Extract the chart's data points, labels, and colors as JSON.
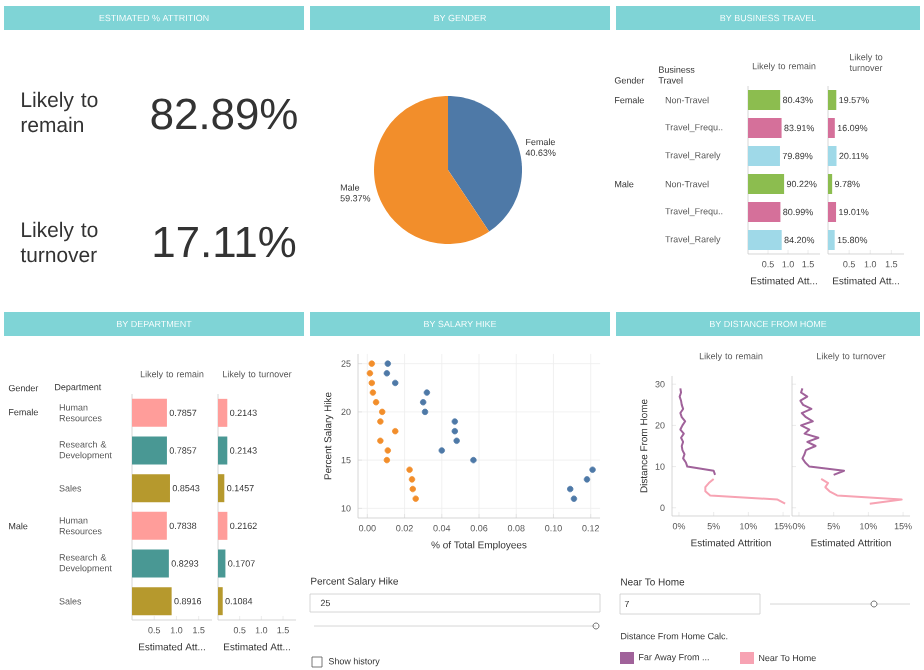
{
  "chart_data": [
    {
      "type": "other",
      "title": "ESTIMATED % ATTRITION",
      "annotations": [
        "Likely to remain",
        "82.89%",
        "Likely to turnover",
        "17.11%"
      ]
    },
    {
      "type": "pie",
      "title": "BY GENDER",
      "categories": [
        "Female",
        "Male"
      ],
      "values": [
        40.63,
        59.37
      ],
      "colors": [
        "#4e79a7",
        "#f28e2b"
      ],
      "value_labels": [
        "40.63%",
        "59.37%"
      ]
    },
    {
      "type": "bar",
      "orientation": "horizontal",
      "title": "BY BUSINESS TRAVEL",
      "subtitle": "Likely to remain",
      "xlabel": "Estimated Att...",
      "categories": [
        "Non-Travel",
        "Travel_Frequ..",
        "Travel_Rarely",
        "Non-Travel",
        "Travel_Frequ..",
        "Travel_Rarely"
      ],
      "values": [
        0.8043,
        0.8391,
        0.7989,
        0.9022,
        0.8099,
        0.842
      ],
      "colors": [
        "#8cbd4f",
        "#d5709a",
        "#9fd9e8",
        "#8cbd4f",
        "#d5709a",
        "#9fd9e8"
      ],
      "value_labels": [
        "80.43%",
        "83.91%",
        "79.89%",
        "90.22%",
        "80.99%",
        "84.20%"
      ],
      "xlim": [
        0,
        1.8
      ],
      "xticks": [
        0.5,
        {
          "value": 1,
          "label": "1.0"
        },
        1.5
      ],
      "annotations": [
        "Gender",
        "Business Travel",
        "Female",
        "Male"
      ]
    },
    {
      "type": "bar",
      "orientation": "horizontal",
      "subtitle": "Likely to turnover",
      "xlabel": "Estimated Att...",
      "tick_labels": "x",
      "categories": [
        null,
        null,
        null,
        null,
        null,
        null
      ],
      "values": [
        0.1957,
        0.1609,
        0.2011,
        0.0978,
        0.1901,
        0.158
      ],
      "colors": [
        "#8cbd4f",
        "#d5709a",
        "#9fd9e8",
        "#8cbd4f",
        "#d5709a",
        "#9fd9e8"
      ],
      "value_labels": [
        "19.57%",
        "16.09%",
        "20.11%",
        "9.78%",
        "19.01%",
        "15.80%"
      ],
      "xlim": [
        0,
        1.8
      ],
      "xticks": [
        0.5,
        {
          "value": 1,
          "label": "1.0"
        },
        1.5
      ]
    },
    {
      "type": "bar",
      "orientation": "horizontal",
      "title": "BY DEPARTMENT",
      "subtitle": "Likely to remain",
      "xlabel": "Estimated Att...",
      "categories": [
        "Human Resources",
        "Research & Development",
        "Sales",
        "Human Resources",
        "Research & Development",
        "Sales"
      ],
      "values": [
        0.7857,
        0.7857,
        0.8543,
        0.7838,
        0.8293,
        0.8916
      ],
      "colors": [
        "#ff9d9a",
        "#499894",
        "#b6992d",
        "#ff9d9a",
        "#499894",
        "#b6992d"
      ],
      "data_labels": true,
      "xlim": [
        0,
        1.8
      ],
      "xticks": [
        0.5,
        {
          "value": 1,
          "label": "1.0"
        },
        1.5
      ],
      "annotations": [
        "Gender",
        "Department",
        "Female",
        "Male"
      ]
    },
    {
      "type": "bar",
      "orientation": "horizontal",
      "subtitle": "Likely to turnover",
      "xlabel": "Estimated Att...",
      "tick_labels": "x",
      "categories": [
        null,
        null,
        null,
        null,
        null,
        null
      ],
      "values": [
        0.2143,
        0.2143,
        0.1457,
        0.2162,
        0.1707,
        0.1084
      ],
      "colors": [
        "#ff9d9a",
        "#499894",
        "#b6992d",
        "#ff9d9a",
        "#499894",
        "#b6992d"
      ],
      "data_labels": true,
      "xlim": [
        0,
        1.8
      ],
      "xticks": [
        0.5,
        {
          "value": 1,
          "label": "1.0"
        },
        1.5
      ]
    },
    {
      "type": "scatter",
      "title": "BY SALARY HIKE",
      "xlabel": "% of Total Employees",
      "ylabel": "Percent Salary Hike",
      "marker": "circle",
      "grid": true,
      "xlim": [
        -0.005,
        0.125
      ],
      "xticks": [
        {
          "value": 0,
          "label": "0.00"
        },
        0.02,
        0.04,
        0.06,
        0.08,
        {
          "value": 0.1,
          "label": "0.10"
        },
        0.12
      ],
      "ylim": [
        9,
        26
      ],
      "yticks": [
        10,
        15,
        20,
        25
      ],
      "series": [
        {
          "color": "#f28e2b",
          "x": [
            0.0024,
            0.0014,
            0.0024,
            0.003,
            0.0047,
            0.008,
            0.007,
            0.015,
            0.007,
            0.011,
            0.0105,
            0.0227,
            0.024,
            0.0244,
            0.026
          ],
          "values": [
            25,
            24,
            23,
            22,
            21,
            20,
            19,
            18,
            17,
            16,
            15,
            14,
            13,
            12,
            11
          ]
        },
        {
          "color": "#4e79a7",
          "x": [
            0.011,
            0.0105,
            0.015,
            0.032,
            0.03,
            0.031,
            0.047,
            0.047,
            0.048,
            0.04,
            0.057,
            0.121,
            0.118,
            0.109,
            0.111
          ],
          "values": [
            25,
            24,
            23,
            22,
            21,
            20,
            19,
            18,
            17,
            16,
            15,
            14,
            13,
            12,
            11
          ]
        }
      ],
      "annotations": [
        "Percent Salary Hike",
        "25",
        "Show history"
      ]
    },
    {
      "type": "line",
      "orientation": "horizontal",
      "title": "BY DISTANCE FROM HOME",
      "subtitle": "Likely to remain",
      "xlabel": "Estimated Attrition",
      "ylabel": "Distance From Home",
      "xlim": [
        -1,
        16
      ],
      "xticks": [
        {
          "value": 0,
          "label": "0%"
        },
        {
          "value": 5,
          "label": "5%"
        },
        {
          "value": 10,
          "label": "10%"
        },
        {
          "value": 15,
          "label": "15%"
        }
      ],
      "ylim": [
        -2,
        32
      ],
      "yticks": [
        0,
        10,
        20,
        30
      ],
      "legend": "bottom",
      "legend_title": "Distance From Home Calc.",
      "series": [
        {
          "name": "Far Away From ...",
          "color": "#a0629a",
          "x": [
            8,
            9,
            10,
            11,
            12,
            13,
            14,
            15,
            16,
            17,
            18,
            19,
            20,
            21,
            22,
            23,
            24,
            25,
            26,
            27,
            28,
            29
          ],
          "values": [
            5.2,
            5.0,
            1.2,
            1.0,
            0.6,
            0.8,
            0.5,
            0.4,
            0.6,
            0.3,
            0.7,
            0.2,
            0.5,
            0.9,
            0.4,
            0.2,
            0.6,
            0.4,
            0.3,
            0.1,
            0.3,
            0.2
          ]
        },
        {
          "name": "Near To Home",
          "color": "#f7a3b3",
          "x": [
            1,
            2,
            3,
            4,
            5,
            6,
            7
          ],
          "values": [
            15.3,
            14.2,
            4.5,
            3.8,
            3.8,
            4.3,
            5.0
          ]
        }
      ],
      "annotations": [
        "Near To Home",
        "7"
      ]
    },
    {
      "type": "line",
      "orientation": "horizontal",
      "subtitle": "Likely to turnover",
      "xlabel": "Estimated Attrition",
      "tick_labels": "x",
      "xlim": [
        -1,
        16
      ],
      "xticks": [
        {
          "value": 0,
          "label": "0%"
        },
        {
          "value": 5,
          "label": "5%"
        },
        {
          "value": 10,
          "label": "10%"
        },
        {
          "value": 15,
          "label": "15%"
        }
      ],
      "ylim": [
        -2,
        32
      ],
      "yticks": [
        0,
        10,
        20,
        30
      ],
      "series": [
        {
          "color": "#a0629a",
          "x": [
            8,
            9,
            10,
            11,
            12,
            13,
            14,
            15,
            16,
            17,
            18,
            19,
            20,
            21,
            22,
            23,
            24,
            25,
            26,
            27,
            28,
            29
          ],
          "values": [
            5.0,
            6.5,
            1.5,
            0.9,
            0.5,
            0.8,
            1.0,
            2.4,
            1.2,
            2.8,
            0.8,
            1.5,
            0.3,
            2.0,
            1.0,
            0.4,
            1.8,
            0.6,
            0.2,
            1.2,
            0.3,
            0.5
          ]
        },
        {
          "color": "#f7a3b3",
          "x": [
            1,
            2,
            3,
            4,
            5,
            6,
            7
          ],
          "values": [
            10.2,
            14.8,
            5.5,
            4.4,
            3.8,
            4.2,
            3.2
          ]
        }
      ]
    }
  ]
}
